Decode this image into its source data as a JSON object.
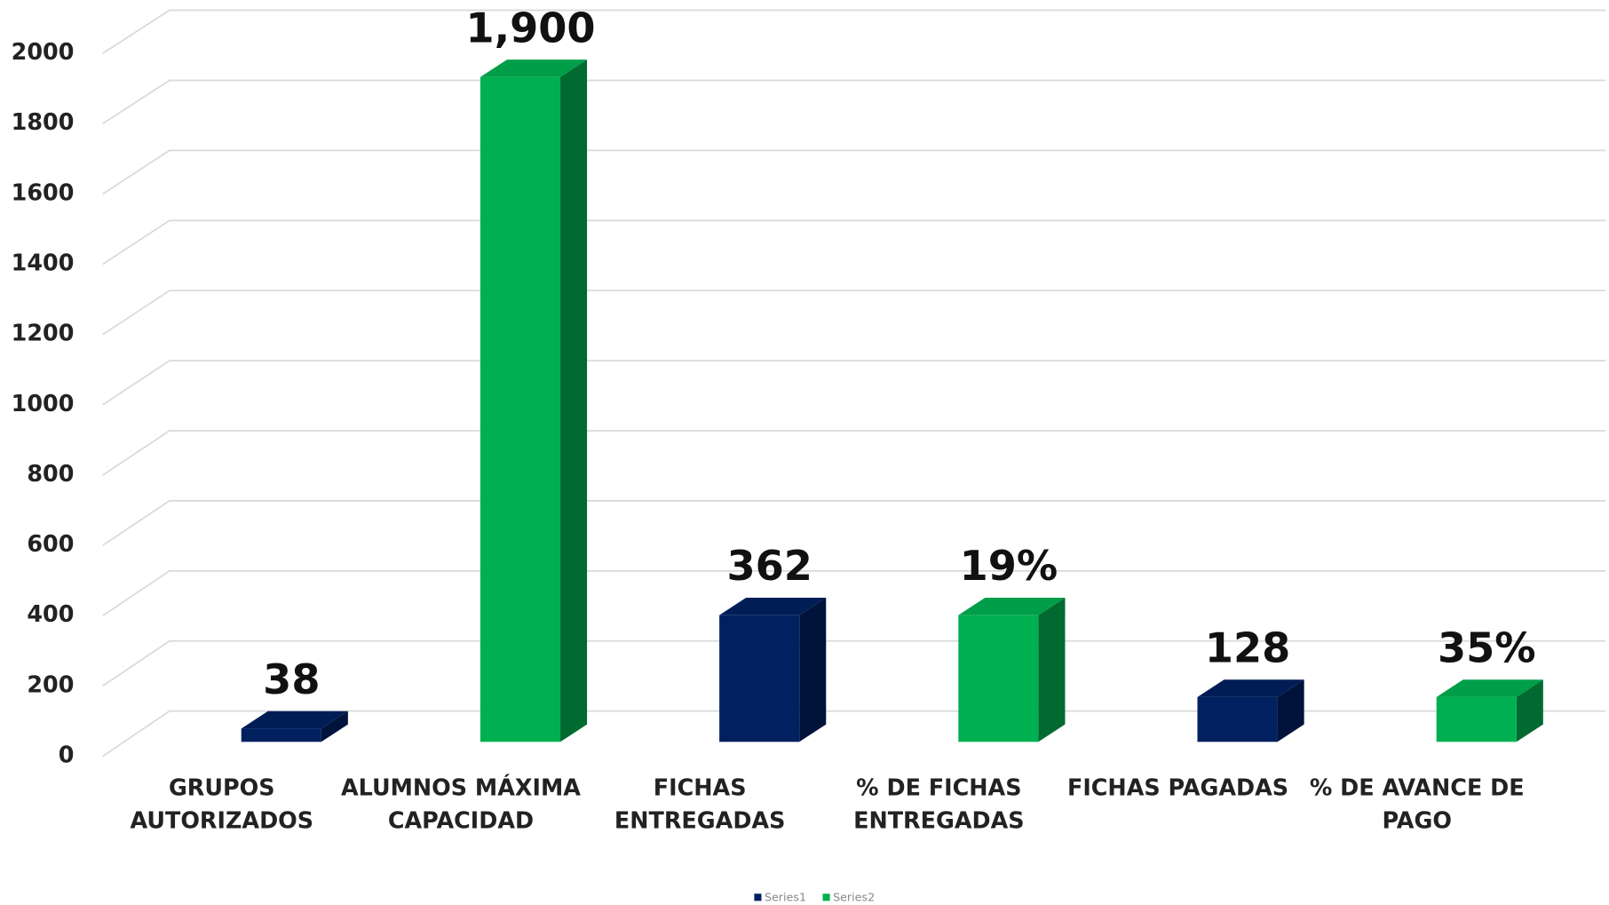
{
  "chart_data": {
    "type": "bar3d",
    "categories": [
      "GRUPOS AUTORIZADOS",
      "ALUMNOS MÁXIMA CAPACIDAD",
      "FICHAS ENTREGADAS",
      "% DE FICHAS ENTREGADAS",
      "FICHAS PAGADAS",
      "% DE AVANCE DE PAGO"
    ],
    "series": [
      {
        "name": "Series1",
        "color": "#002060",
        "values": [
          38,
          null,
          362,
          null,
          128,
          null
        ],
        "value_labels": [
          "38",
          null,
          "362",
          null,
          "128",
          null
        ]
      },
      {
        "name": "Series2",
        "color": "#00b050",
        "values": [
          null,
          1900,
          null,
          362,
          null,
          128
        ],
        "value_labels": [
          null,
          "1,900",
          null,
          "19%",
          null,
          "35%"
        ]
      }
    ],
    "ylim": [
      0,
      2000
    ],
    "yticks": [
      0,
      200,
      400,
      600,
      800,
      1000,
      1200,
      1400,
      1600,
      1800,
      2000
    ],
    "grid": true,
    "legend": "bottom"
  }
}
